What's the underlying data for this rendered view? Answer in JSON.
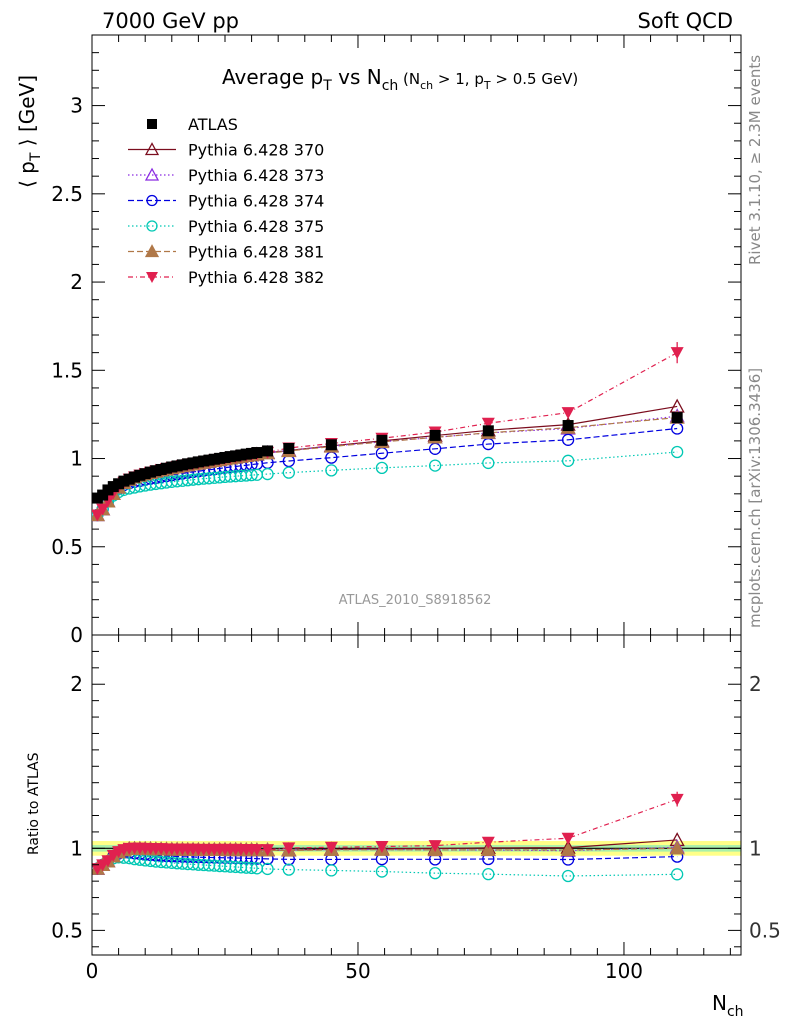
{
  "header": {
    "left": "7000 GeV pp",
    "right": "Soft QCD"
  },
  "side_text": {
    "rivet": "Rivet 3.1.10, ≥ 2.3M events",
    "mcplots": "mcplots.cern.ch [arXiv:1306.3436]"
  },
  "analysis_id": "ATLAS_2010_S8918562",
  "chart_data": [
    {
      "type": "line",
      "title": "Average p_T vs N_ch (N_ch > 1, p_T > 0.5 GeV)",
      "xlabel": "N_ch",
      "ylabel": "⟨ p_T ⟩ [GeV]",
      "xlim": [
        0,
        122
      ],
      "ylim": [
        0,
        3.4
      ],
      "yticks": [
        0,
        0.5,
        1,
        1.5,
        2,
        2.5,
        3
      ],
      "yticklabels": [
        "0",
        "0.5",
        "1",
        "1.5",
        "2",
        "2.5",
        "3"
      ],
      "legend": "top-left",
      "x": [
        1,
        2,
        3,
        4,
        5,
        6,
        7,
        8,
        9,
        10,
        11,
        12,
        13,
        14,
        15,
        16,
        17,
        18,
        19,
        20,
        21,
        22,
        23,
        24,
        25,
        26,
        27,
        28,
        29,
        30,
        31,
        33,
        37,
        45,
        54.5,
        64.5,
        74.5,
        89.5,
        110
      ],
      "series": [
        {
          "name": "ATLAS",
          "color": "#000000",
          "marker": "square",
          "values": [
            0.776,
            0.793,
            0.822,
            0.841,
            0.857,
            0.872,
            0.883,
            0.895,
            0.905,
            0.914,
            0.923,
            0.931,
            0.938,
            0.945,
            0.952,
            0.958,
            0.964,
            0.97,
            0.975,
            0.981,
            0.986,
            0.991,
            0.996,
            1.001,
            1.006,
            1.011,
            1.015,
            1.02,
            1.025,
            1.029,
            1.034,
            1.043,
            1.057,
            1.078,
            1.103,
            1.131,
            1.157,
            1.187,
            1.232
          ]
        },
        {
          "name": "Pythia 6.428 370",
          "color": "#7b0d1e",
          "marker": "triangle-open",
          "dash": "",
          "values": [
            0.68,
            0.713,
            0.757,
            0.8,
            0.836,
            0.862,
            0.88,
            0.893,
            0.903,
            0.911,
            0.919,
            0.926,
            0.933,
            0.939,
            0.945,
            0.951,
            0.957,
            0.962,
            0.967,
            0.972,
            0.977,
            0.982,
            0.987,
            0.992,
            0.997,
            1.001,
            1.006,
            1.01,
            1.015,
            1.019,
            1.023,
            1.032,
            1.046,
            1.072,
            1.1,
            1.13,
            1.16,
            1.192,
            1.295
          ]
        },
        {
          "name": "Pythia 6.428 373",
          "color": "#8a2be2",
          "marker": "triangle-open",
          "dash": "1.5 2.5",
          "values": [
            0.68,
            0.713,
            0.757,
            0.8,
            0.836,
            0.862,
            0.88,
            0.893,
            0.903,
            0.911,
            0.919,
            0.926,
            0.933,
            0.939,
            0.945,
            0.951,
            0.957,
            0.962,
            0.967,
            0.972,
            0.977,
            0.982,
            0.987,
            0.992,
            0.997,
            1.001,
            1.006,
            1.01,
            1.015,
            1.019,
            1.023,
            1.032,
            1.046,
            1.07,
            1.095,
            1.12,
            1.145,
            1.17,
            1.24
          ]
        },
        {
          "name": "Pythia 6.428 374",
          "color": "#0000e0",
          "marker": "circle-open",
          "dash": "6 3",
          "values": [
            0.68,
            0.713,
            0.757,
            0.8,
            0.83,
            0.85,
            0.86,
            0.868,
            0.874,
            0.88,
            0.886,
            0.891,
            0.896,
            0.901,
            0.906,
            0.911,
            0.915,
            0.92,
            0.924,
            0.928,
            0.932,
            0.936,
            0.94,
            0.944,
            0.948,
            0.952,
            0.955,
            0.959,
            0.962,
            0.966,
            0.969,
            0.976,
            0.986,
            1.005,
            1.03,
            1.055,
            1.082,
            1.106,
            1.17
          ]
        },
        {
          "name": "Pythia 6.428 375",
          "color": "#00c8b4",
          "marker": "circle-open",
          "dash": "1.5 2.5",
          "values": [
            0.68,
            0.713,
            0.757,
            0.79,
            0.81,
            0.822,
            0.83,
            0.836,
            0.842,
            0.847,
            0.852,
            0.856,
            0.86,
            0.864,
            0.868,
            0.871,
            0.874,
            0.877,
            0.88,
            0.883,
            0.886,
            0.888,
            0.891,
            0.893,
            0.896,
            0.898,
            0.9,
            0.902,
            0.904,
            0.906,
            0.908,
            0.912,
            0.92,
            0.933,
            0.947,
            0.96,
            0.975,
            0.987,
            1.037
          ]
        },
        {
          "name": "Pythia 6.428 381",
          "color": "#b07848",
          "marker": "triangle-filled",
          "dash": "6 3",
          "values": [
            0.68,
            0.713,
            0.757,
            0.8,
            0.836,
            0.862,
            0.88,
            0.893,
            0.903,
            0.911,
            0.919,
            0.926,
            0.933,
            0.939,
            0.945,
            0.951,
            0.957,
            0.962,
            0.967,
            0.972,
            0.977,
            0.982,
            0.987,
            0.992,
            0.997,
            1.001,
            1.006,
            1.01,
            1.015,
            1.019,
            1.023,
            1.03,
            1.043,
            1.068,
            1.094,
            1.12,
            1.146,
            1.175,
            1.232
          ]
        },
        {
          "name": "Pythia 6.428 382",
          "color": "#e0204f",
          "marker": "triangle-down-filled",
          "dash": "5 3 1 3",
          "values": [
            0.68,
            0.713,
            0.76,
            0.805,
            0.84,
            0.865,
            0.883,
            0.896,
            0.906,
            0.914,
            0.922,
            0.929,
            0.936,
            0.942,
            0.948,
            0.954,
            0.96,
            0.965,
            0.97,
            0.975,
            0.98,
            0.985,
            0.99,
            0.995,
            1.0,
            1.004,
            1.009,
            1.013,
            1.018,
            1.022,
            1.026,
            1.035,
            1.06,
            1.085,
            1.115,
            1.15,
            1.2,
            1.26,
            1.6
          ]
        }
      ]
    },
    {
      "type": "line",
      "title": "",
      "xlabel": "N_ch",
      "ylabel": "Ratio to ATLAS",
      "xlim": [
        0,
        122
      ],
      "ylim": [
        0.35,
        2.3
      ],
      "yticks": [
        0.5,
        1,
        2
      ],
      "yticklabels": [
        "0.5",
        "1",
        "2"
      ],
      "xticks": [
        0,
        50,
        100
      ],
      "xticklabels": [
        "0",
        "50",
        "100"
      ],
      "note": "ratio of each series to ATLAS; reference band at 1"
    }
  ]
}
